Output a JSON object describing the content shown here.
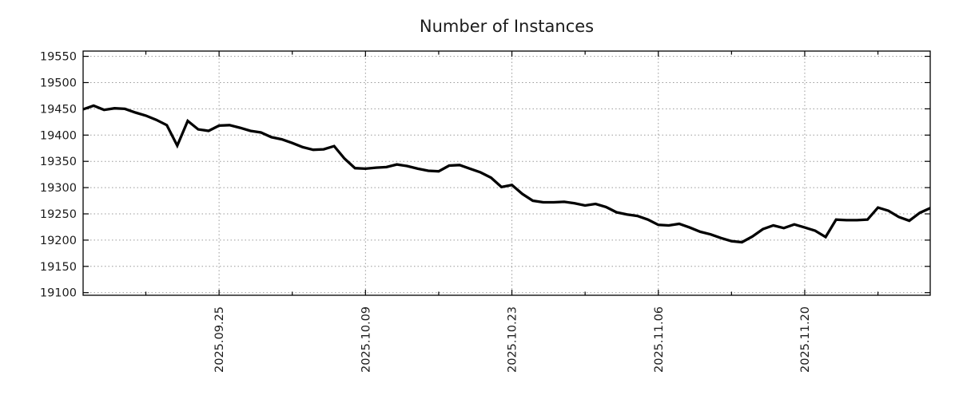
{
  "page": {
    "background": "#ffffff"
  },
  "chart_data": {
    "type": "line",
    "title": "Number of Instances",
    "xlabel": "",
    "ylabel": "",
    "legend": "none",
    "grid": "dotted-major-both-axes",
    "line_color": "#000000",
    "grid_color": "#999999",
    "axis_color": "#000000",
    "text_color": "#1c1c1c",
    "background": "#ffffff",
    "ylim": [
      19095,
      19560
    ],
    "yticks": [
      19100,
      19150,
      19200,
      19250,
      19300,
      19350,
      19400,
      19450,
      19500,
      19550
    ],
    "xticks_major": [
      "2025.09.25",
      "2025.10.09",
      "2025.10.23",
      "2025.11.06",
      "2025.11.20"
    ],
    "xticks_minor": [
      "2025.09.18",
      "2025.10.02",
      "2025.10.16",
      "2025.10.30",
      "2025.11.13",
      "2025.11.27"
    ],
    "x": [
      "2025.09.12",
      "2025.09.13",
      "2025.09.14",
      "2025.09.15",
      "2025.09.16",
      "2025.09.17",
      "2025.09.18",
      "2025.09.19",
      "2025.09.20",
      "2025.09.21",
      "2025.09.22",
      "2025.09.23",
      "2025.09.24",
      "2025.09.25",
      "2025.09.26",
      "2025.09.27",
      "2025.09.28",
      "2025.09.29",
      "2025.09.30",
      "2025.10.01",
      "2025.10.02",
      "2025.10.03",
      "2025.10.04",
      "2025.10.05",
      "2025.10.06",
      "2025.10.07",
      "2025.10.08",
      "2025.10.09",
      "2025.10.10",
      "2025.10.11",
      "2025.10.12",
      "2025.10.13",
      "2025.10.14",
      "2025.10.15",
      "2025.10.16",
      "2025.10.17",
      "2025.10.18",
      "2025.10.19",
      "2025.10.20",
      "2025.10.21",
      "2025.10.22",
      "2025.10.23",
      "2025.10.24",
      "2025.10.25",
      "2025.10.26",
      "2025.10.27",
      "2025.10.28",
      "2025.10.29",
      "2025.10.30",
      "2025.10.31",
      "2025.11.01",
      "2025.11.02",
      "2025.11.03",
      "2025.11.04",
      "2025.11.05",
      "2025.11.06",
      "2025.11.07",
      "2025.11.08",
      "2025.11.09",
      "2025.11.10",
      "2025.11.11",
      "2025.11.12",
      "2025.11.13",
      "2025.11.14",
      "2025.11.15",
      "2025.11.16",
      "2025.11.17",
      "2025.11.18",
      "2025.11.19",
      "2025.11.20",
      "2025.11.21",
      "2025.11.22",
      "2025.11.23",
      "2025.11.24",
      "2025.11.25",
      "2025.11.26",
      "2025.11.27",
      "2025.11.28",
      "2025.11.29",
      "2025.11.30",
      "2025.12.01",
      "2025.12.02"
    ],
    "values": [
      19449,
      19456,
      19448,
      19451,
      19450,
      19443,
      19437,
      19429,
      19419,
      19380,
      19427,
      19411,
      19408,
      19418,
      19419,
      19414,
      19408,
      19405,
      19396,
      19392,
      19385,
      19377,
      19372,
      19373,
      19379,
      19355,
      19337,
      19336,
      19338,
      19339,
      19344,
      19341,
      19336,
      19332,
      19331,
      19342,
      19343,
      19336,
      19329,
      19319,
      19301,
      19305,
      19288,
      19275,
      19272,
      19272,
      19273,
      19270,
      19266,
      19269,
      19263,
      19253,
      19249,
      19246,
      19239,
      19229,
      19228,
      19231,
      19224,
      19216,
      19211,
      19204,
      19198,
      19196,
      19207,
      19221,
      19228,
      19223,
      19230,
      19224,
      19218,
      19206,
      19239,
      19238,
      19238,
      19239,
      19262,
      19256,
      19244,
      19237,
      19252,
      19261
    ]
  }
}
